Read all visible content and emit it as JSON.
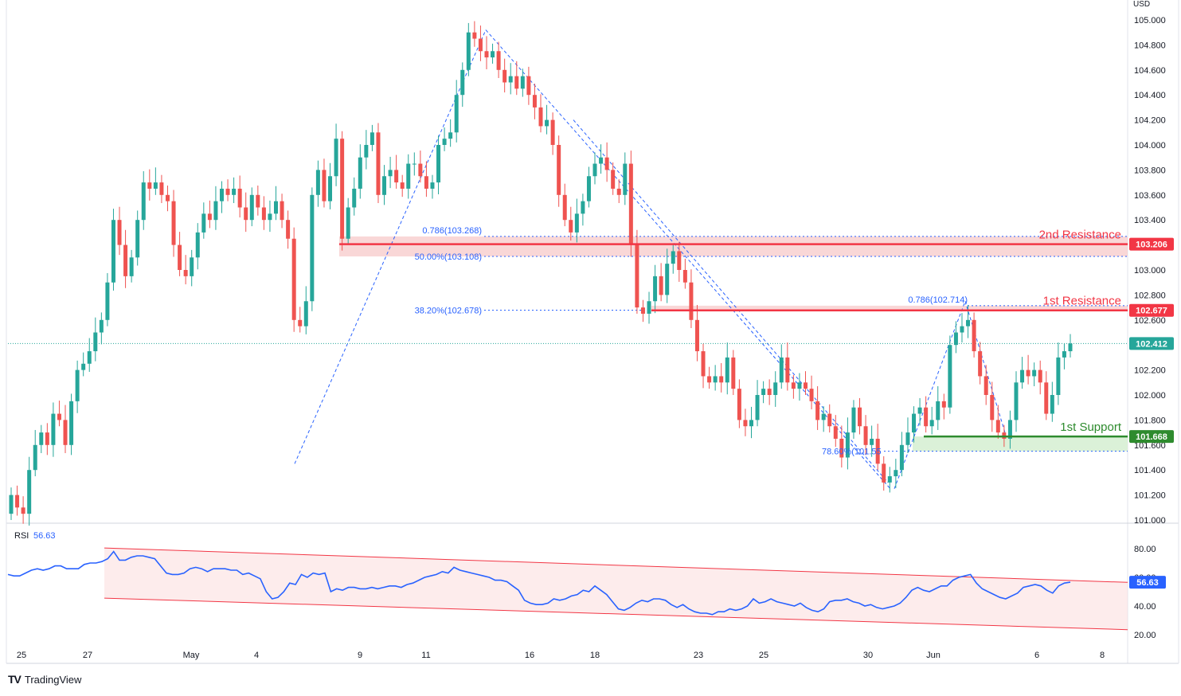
{
  "chart_data": {
    "type": "candlestick",
    "currency": "USD",
    "ylim": [
      101.0,
      105.0
    ],
    "price_ticks": [
      "101.000",
      "101.200",
      "101.400",
      "101.600",
      "101.800",
      "102.000",
      "102.200",
      "102.400",
      "102.600",
      "102.800",
      "103.000",
      "103.200",
      "103.400",
      "103.600",
      "103.800",
      "104.000",
      "104.200",
      "104.400",
      "104.600",
      "104.800",
      "105.000"
    ],
    "x_ticks": [
      "25",
      "27",
      "May",
      "4",
      "9",
      "11",
      "16",
      "18",
      "23",
      "25",
      "30",
      "Jun",
      "6",
      "8"
    ],
    "last_price": 102.412,
    "levels": [
      {
        "name": "2nd Resistance",
        "price": 103.206,
        "label": "103.206",
        "color": "#f23645"
      },
      {
        "name": "1st Resistance",
        "price": 102.677,
        "label": "102.677",
        "color": "#f23645"
      },
      {
        "name": "1st Support",
        "price": 101.668,
        "label": "101.668",
        "color": "#2e8b2e"
      }
    ],
    "current_label": "102.412",
    "fib_labels": [
      {
        "text": "0.786(103.268)",
        "price": 103.268
      },
      {
        "text": "50.00%(103.108)",
        "price": 103.108
      },
      {
        "text": "38.20%(102.678)",
        "price": 102.678
      },
      {
        "text": "0.786(102.714)",
        "price": 102.714
      },
      {
        "text": "78.60%(101.55",
        "price": 101.55
      }
    ],
    "candles": [
      [
        101.05,
        101.2
      ],
      [
        101.2,
        101.1
      ],
      [
        101.1,
        101.05
      ],
      [
        101.05,
        101.4
      ],
      [
        101.4,
        101.6
      ],
      [
        101.6,
        101.7
      ],
      [
        101.7,
        101.6
      ],
      [
        101.6,
        101.85
      ],
      [
        101.85,
        101.8
      ],
      [
        101.8,
        101.6
      ],
      [
        101.6,
        101.95
      ],
      [
        101.95,
        102.2
      ],
      [
        102.2,
        102.25
      ],
      [
        102.25,
        102.35
      ],
      [
        102.35,
        102.5
      ],
      [
        102.5,
        102.6
      ],
      [
        102.6,
        102.9
      ],
      [
        102.9,
        103.4
      ],
      [
        103.4,
        103.2
      ],
      [
        103.2,
        102.95
      ],
      [
        102.95,
        103.1
      ],
      [
        103.1,
        103.4
      ],
      [
        103.4,
        103.7
      ],
      [
        103.7,
        103.65
      ],
      [
        103.65,
        103.7
      ],
      [
        103.7,
        103.6
      ],
      [
        103.6,
        103.55
      ],
      [
        103.55,
        103.2
      ],
      [
        103.2,
        103.0
      ],
      [
        103.0,
        102.95
      ],
      [
        102.95,
        103.1
      ],
      [
        103.1,
        103.3
      ],
      [
        103.3,
        103.45
      ],
      [
        103.45,
        103.4
      ],
      [
        103.4,
        103.55
      ],
      [
        103.55,
        103.65
      ],
      [
        103.65,
        103.6
      ],
      [
        103.6,
        103.65
      ],
      [
        103.65,
        103.5
      ],
      [
        103.5,
        103.4
      ],
      [
        103.4,
        103.6
      ],
      [
        103.6,
        103.5
      ],
      [
        103.5,
        103.4
      ],
      [
        103.4,
        103.45
      ],
      [
        103.45,
        103.55
      ],
      [
        103.55,
        103.4
      ],
      [
        103.4,
        103.25
      ],
      [
        103.25,
        102.6
      ],
      [
        102.6,
        102.55
      ],
      [
        102.55,
        102.75
      ],
      [
        102.75,
        103.6
      ],
      [
        103.6,
        103.8
      ],
      [
        103.8,
        103.55
      ],
      [
        103.55,
        103.75
      ],
      [
        103.75,
        104.05
      ],
      [
        104.05,
        103.25
      ],
      [
        103.25,
        103.5
      ],
      [
        103.5,
        103.65
      ],
      [
        103.65,
        103.9
      ],
      [
        103.9,
        104.0
      ],
      [
        104.0,
        104.1
      ],
      [
        104.1,
        103.6
      ],
      [
        103.6,
        103.75
      ],
      [
        103.75,
        103.8
      ],
      [
        103.8,
        103.7
      ],
      [
        103.7,
        103.65
      ],
      [
        103.65,
        103.85
      ],
      [
        103.85,
        103.85
      ],
      [
        103.85,
        103.75
      ],
      [
        103.75,
        103.65
      ],
      [
        103.65,
        103.7
      ],
      [
        103.7,
        104.0
      ],
      [
        104.0,
        104.05
      ],
      [
        104.05,
        104.1
      ],
      [
        104.1,
        104.4
      ],
      [
        104.4,
        104.6
      ],
      [
        104.6,
        104.9
      ],
      [
        104.9,
        104.85
      ],
      [
        104.85,
        104.75
      ],
      [
        104.75,
        104.7
      ],
      [
        104.7,
        104.75
      ],
      [
        104.75,
        104.6
      ],
      [
        104.6,
        104.5
      ],
      [
        104.5,
        104.55
      ],
      [
        104.55,
        104.45
      ],
      [
        104.45,
        104.55
      ],
      [
        104.55,
        104.4
      ],
      [
        104.4,
        104.3
      ],
      [
        104.3,
        104.15
      ],
      [
        104.15,
        104.2
      ],
      [
        104.2,
        104.0
      ],
      [
        104.0,
        103.6
      ],
      [
        103.6,
        103.4
      ],
      [
        103.4,
        103.3
      ],
      [
        103.3,
        103.45
      ],
      [
        103.45,
        103.55
      ],
      [
        103.55,
        103.75
      ],
      [
        103.75,
        103.85
      ],
      [
        103.85,
        103.9
      ],
      [
        103.9,
        103.8
      ],
      [
        103.8,
        103.65
      ],
      [
        103.65,
        103.6
      ],
      [
        103.6,
        103.85
      ],
      [
        103.85,
        103.2
      ],
      [
        103.2,
        102.7
      ],
      [
        102.7,
        102.65
      ],
      [
        102.65,
        102.75
      ],
      [
        102.75,
        102.95
      ],
      [
        102.95,
        102.8
      ],
      [
        102.8,
        103.05
      ],
      [
        103.05,
        103.15
      ],
      [
        103.15,
        103.0
      ],
      [
        103.0,
        102.9
      ],
      [
        102.9,
        102.6
      ],
      [
        102.6,
        102.35
      ],
      [
        102.35,
        102.15
      ],
      [
        102.15,
        102.1
      ],
      [
        102.1,
        102.15
      ],
      [
        102.15,
        102.1
      ],
      [
        102.1,
        102.3
      ],
      [
        102.3,
        102.05
      ],
      [
        102.05,
        101.8
      ],
      [
        101.8,
        101.75
      ],
      [
        101.75,
        101.8
      ],
      [
        101.8,
        102.0
      ],
      [
        102.0,
        102.05
      ],
      [
        102.05,
        102.0
      ],
      [
        102.0,
        102.1
      ],
      [
        102.1,
        102.3
      ],
      [
        102.3,
        102.1
      ],
      [
        102.1,
        102.05
      ],
      [
        102.05,
        102.1
      ],
      [
        102.1,
        102.05
      ],
      [
        102.05,
        101.95
      ],
      [
        101.95,
        101.8
      ],
      [
        101.8,
        101.85
      ],
      [
        101.85,
        101.75
      ],
      [
        101.75,
        101.65
      ],
      [
        101.65,
        101.5
      ],
      [
        101.5,
        101.7
      ],
      [
        101.7,
        101.9
      ],
      [
        101.9,
        101.75
      ],
      [
        101.75,
        101.6
      ],
      [
        101.6,
        101.65
      ],
      [
        101.65,
        101.45
      ],
      [
        101.45,
        101.3
      ],
      [
        101.3,
        101.35
      ],
      [
        101.35,
        101.4
      ],
      [
        101.4,
        101.6
      ],
      [
        101.6,
        101.7
      ],
      [
        101.7,
        101.85
      ],
      [
        101.85,
        101.9
      ],
      [
        101.9,
        101.75
      ],
      [
        101.75,
        101.8
      ],
      [
        101.8,
        101.95
      ],
      [
        101.95,
        101.9
      ],
      [
        101.9,
        102.4
      ],
      [
        102.4,
        102.5
      ],
      [
        102.5,
        102.55
      ],
      [
        102.55,
        102.6
      ],
      [
        102.6,
        102.35
      ],
      [
        102.35,
        102.15
      ],
      [
        102.15,
        102.0
      ],
      [
        102.0,
        101.8
      ],
      [
        101.8,
        101.7
      ],
      [
        101.7,
        101.65
      ],
      [
        101.65,
        101.8
      ],
      [
        101.8,
        102.1
      ],
      [
        102.1,
        102.2
      ],
      [
        102.2,
        102.15
      ],
      [
        102.15,
        102.2
      ],
      [
        102.2,
        102.1
      ],
      [
        102.1,
        101.85
      ],
      [
        101.85,
        102.0
      ],
      [
        102.0,
        102.3
      ],
      [
        102.3,
        102.35
      ],
      [
        102.35,
        102.412
      ]
    ],
    "rsi": {
      "label": "RSI",
      "value_label": "56.63",
      "value": 56.63,
      "ylim": [
        20,
        80
      ],
      "ticks": [
        "20.00",
        "40.00",
        "60.00",
        "80.00"
      ],
      "values": [
        62,
        61,
        61,
        63,
        65,
        66,
        65,
        66,
        68,
        68,
        66,
        66,
        66,
        69,
        70,
        70,
        71,
        73,
        78,
        72,
        72,
        74,
        75,
        75,
        74,
        73,
        68,
        63,
        62,
        62,
        63,
        66,
        67,
        66,
        64,
        66,
        66,
        66,
        65,
        65,
        62,
        63,
        61,
        59,
        50,
        45,
        46,
        50,
        56,
        55,
        62,
        60,
        63,
        62,
        63,
        50,
        52,
        51,
        53,
        53,
        52,
        52,
        53,
        52,
        53,
        54,
        54,
        53,
        55,
        56,
        58,
        60,
        61,
        62,
        64,
        63,
        67,
        65,
        64,
        63,
        62,
        61,
        60,
        58,
        58,
        57,
        54,
        51,
        44,
        42,
        41,
        41,
        42,
        45,
        44,
        45,
        47,
        48,
        51,
        50,
        54,
        51,
        48,
        43,
        38,
        37,
        39,
        42,
        44,
        43,
        45,
        45,
        44,
        41,
        39,
        41,
        38,
        36,
        35,
        35,
        34,
        36,
        36,
        38,
        37,
        38,
        40,
        45,
        42,
        43,
        45,
        43,
        42,
        41,
        40,
        42,
        39,
        37,
        36,
        38,
        43,
        44,
        44,
        45,
        43,
        42,
        40,
        41,
        39,
        38,
        39,
        40,
        42,
        46,
        51,
        53,
        51,
        50,
        52,
        54,
        54,
        58,
        60,
        61,
        62,
        56,
        52,
        50,
        48,
        46,
        45,
        47,
        49,
        53,
        54,
        55,
        54,
        51,
        49,
        54,
        56,
        56.63
      ],
      "channel_upper": [
        80.5,
        56.5
      ],
      "channel_lower": [
        45.5,
        23.5
      ]
    }
  },
  "footer": {
    "brand": "TradingView",
    "logo": "TV"
  }
}
